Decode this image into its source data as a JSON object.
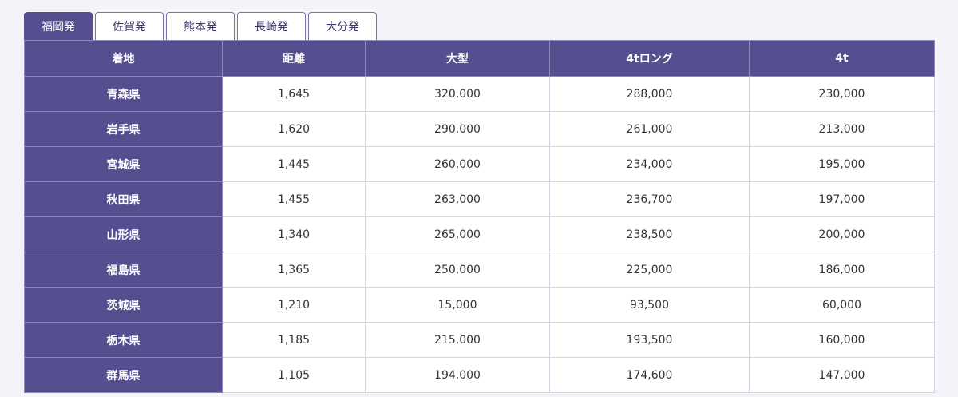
{
  "tabs": [
    {
      "label": "福岡発",
      "active": true
    },
    {
      "label": "佐賀発",
      "active": false
    },
    {
      "label": "熊本発",
      "active": false
    },
    {
      "label": "長崎発",
      "active": false
    },
    {
      "label": "大分発",
      "active": false
    }
  ],
  "table": {
    "headers": [
      "着地",
      "距離",
      "大型",
      "4tロング",
      "4t"
    ],
    "rows": [
      [
        "青森県",
        "1,645",
        "320,000",
        "288,000",
        "230,000"
      ],
      [
        "岩手県",
        "1,620",
        "290,000",
        "261,000",
        "213,000"
      ],
      [
        "宮城県",
        "1,445",
        "260,000",
        "234,000",
        "195,000"
      ],
      [
        "秋田県",
        "1,455",
        "263,000",
        "236,700",
        "197,000"
      ],
      [
        "山形県",
        "1,340",
        "265,000",
        "238,500",
        "200,000"
      ],
      [
        "福島県",
        "1,365",
        "250,000",
        "225,000",
        "186,000"
      ],
      [
        "茨城県",
        "1,210",
        "15,000",
        "93,500",
        "60,000"
      ],
      [
        "栃木県",
        "1,185",
        "215,000",
        "193,500",
        "160,000"
      ],
      [
        "群馬県",
        "1,105",
        "194,000",
        "174,600",
        "147,000"
      ]
    ]
  },
  "colors": {
    "header_bg": "#554e8f",
    "page_bg": "#f4f3fa"
  }
}
